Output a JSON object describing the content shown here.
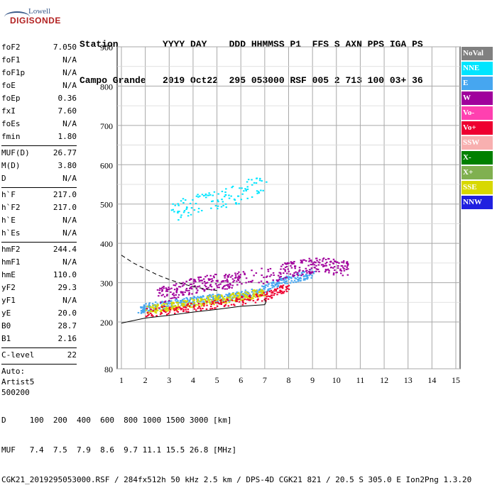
{
  "logo": {
    "line1": "Lowell",
    "line2": "DIGISONDE"
  },
  "header": {
    "line1": "Station        YYYY DAY    DDD HHMMSS P1  FFS S AXN PPS IGA PS",
    "line2": "Campo Grande   2019 Oct22  295 053000 RSF 005 2 713 100 03+ 36"
  },
  "params": {
    "group1": [
      {
        "name": "foF2",
        "value": "7.050"
      },
      {
        "name": "foF1",
        "value": "N/A"
      },
      {
        "name": "foF1p",
        "value": "N/A"
      },
      {
        "name": "foE",
        "value": "N/A"
      },
      {
        "name": "foEp",
        "value": "0.36"
      },
      {
        "name": "fxI",
        "value": "7.60"
      },
      {
        "name": "foEs",
        "value": "N/A"
      },
      {
        "name": "fmin",
        "value": "1.80"
      }
    ],
    "group2": [
      {
        "name": "MUF(D)",
        "value": "26.77"
      },
      {
        "name": "M(D)",
        "value": "3.80"
      },
      {
        "name": "D",
        "value": "N/A"
      }
    ],
    "group3": [
      {
        "name": "h`F",
        "value": "217.0"
      },
      {
        "name": "h`F2",
        "value": "217.0"
      },
      {
        "name": "h`E",
        "value": "N/A"
      },
      {
        "name": "h`Es",
        "value": "N/A"
      }
    ],
    "group4": [
      {
        "name": "hmF2",
        "value": "244.4"
      },
      {
        "name": "hmF1",
        "value": "N/A"
      },
      {
        "name": "hmE",
        "value": "110.0"
      },
      {
        "name": "yF2",
        "value": "29.3"
      },
      {
        "name": "yF1",
        "value": "N/A"
      },
      {
        "name": "yE",
        "value": "20.0"
      },
      {
        "name": "B0",
        "value": "28.7"
      },
      {
        "name": "B1",
        "value": "2.16"
      }
    ],
    "clevel": {
      "name": "C-level",
      "value": "22"
    },
    "auto": [
      "Auto:",
      "Artist5",
      "500200"
    ]
  },
  "legend": [
    {
      "label": "NoVal",
      "color": "#808080",
      "textColor": "#ffffff"
    },
    {
      "label": "NNE",
      "color": "#00e5ff",
      "textColor": "#ffffff"
    },
    {
      "label": "E",
      "color": "#46a6f0",
      "textColor": "#ffffff"
    },
    {
      "label": "W",
      "color": "#a0009c",
      "textColor": "#ffffff"
    },
    {
      "label": "Vo-",
      "color": "#ff40b0",
      "textColor": "#ffffff"
    },
    {
      "label": "Vo+",
      "color": "#ee0030",
      "textColor": "#ffffff"
    },
    {
      "label": "SSW",
      "color": "#f8b0b0",
      "textColor": "#ffffff"
    },
    {
      "label": "X-",
      "color": "#008000",
      "textColor": "#ffffff"
    },
    {
      "label": "X+",
      "color": "#80b050",
      "textColor": "#ffffff"
    },
    {
      "label": "SSE",
      "color": "#d8d800",
      "textColor": "#ffffff"
    },
    {
      "label": "NNW",
      "color": "#2020e0",
      "textColor": "#ffffff"
    }
  ],
  "footer": {
    "line1": "D     100  200  400  600  800 1000 1500 3000 [km]",
    "line2": "MUF   7.4  7.5  7.9  8.6  9.7 11.1 15.5 26.8 [MHz]",
    "line3": "CGK21_2019295053000.RSF / 284fx512h 50 kHz 2.5 km / DPS-4D CGK21 821 / 20.5 S 305.0 E Ion2Png 1.3.20"
  },
  "chart_data": {
    "type": "scatter",
    "title": "",
    "xlabel": "",
    "ylabel": "",
    "x_ticks": [
      1,
      2,
      3,
      4,
      5,
      6,
      7,
      8,
      9,
      10,
      11,
      12,
      13,
      14,
      15
    ],
    "y_ticks": [
      80,
      200,
      300,
      400,
      500,
      600,
      700,
      800,
      900
    ],
    "xlim": [
      1,
      15
    ],
    "ylim": [
      80,
      900
    ],
    "grid": true,
    "traces": [
      {
        "name": "E",
        "points": [
          [
            1.7,
            230
          ],
          [
            2,
            238
          ],
          [
            2.5,
            242
          ],
          [
            3,
            248
          ],
          [
            3.5,
            252
          ],
          [
            4,
            256
          ],
          [
            4.5,
            260
          ],
          [
            5,
            262
          ],
          [
            5.5,
            266
          ],
          [
            6,
            270
          ],
          [
            6.5,
            276
          ],
          [
            7,
            285
          ],
          [
            7.5,
            300
          ],
          [
            8,
            310
          ],
          [
            8.5,
            318
          ],
          [
            9,
            325
          ]
        ]
      },
      {
        "name": "W",
        "points": [
          [
            2.5,
            270
          ],
          [
            3,
            275
          ],
          [
            3.5,
            285
          ],
          [
            4,
            295
          ],
          [
            4.5,
            300
          ],
          [
            5,
            305
          ],
          [
            5.5,
            305
          ],
          [
            6,
            310
          ],
          [
            7.5,
            325
          ],
          [
            8,
            335
          ],
          [
            8.5,
            340
          ],
          [
            9,
            345
          ],
          [
            9.5,
            345
          ],
          [
            10,
            340
          ],
          [
            10.5,
            335
          ]
        ]
      },
      {
        "name": "NNE",
        "points": [
          [
            3,
            475
          ],
          [
            3.5,
            490
          ],
          [
            4,
            500
          ],
          [
            4.5,
            505
          ],
          [
            5,
            510
          ],
          [
            5.5,
            520
          ],
          [
            6,
            530
          ],
          [
            6.5,
            545
          ],
          [
            7,
            560
          ]
        ]
      },
      {
        "name": "SSE",
        "points": [
          [
            2,
            232
          ],
          [
            2.5,
            236
          ],
          [
            3,
            240
          ],
          [
            3.5,
            245
          ],
          [
            4,
            250
          ],
          [
            4.5,
            255
          ],
          [
            5,
            258
          ],
          [
            5.5,
            262
          ],
          [
            6,
            266
          ],
          [
            6.5,
            272
          ],
          [
            7,
            278
          ]
        ]
      },
      {
        "name": "Vo+",
        "points": [
          [
            2,
            226
          ],
          [
            3,
            232
          ],
          [
            4,
            240
          ],
          [
            5,
            248
          ],
          [
            6,
            256
          ],
          [
            7,
            266
          ],
          [
            7.5,
            280
          ],
          [
            8,
            290
          ]
        ]
      }
    ],
    "profile_solid": [
      [
        1,
        197
      ],
      [
        2,
        210
      ],
      [
        3,
        217
      ],
      [
        4,
        225
      ],
      [
        5,
        232
      ],
      [
        6,
        240
      ],
      [
        7,
        244
      ],
      [
        7.05,
        250
      ],
      [
        7,
        258
      ]
    ],
    "profile_dashed": [
      [
        1,
        370
      ],
      [
        1.5,
        350
      ],
      [
        2,
        335
      ],
      [
        2.5,
        320
      ],
      [
        3,
        308
      ],
      [
        3.5,
        298
      ],
      [
        4,
        290
      ],
      [
        4.5,
        284
      ],
      [
        5,
        280
      ]
    ]
  }
}
